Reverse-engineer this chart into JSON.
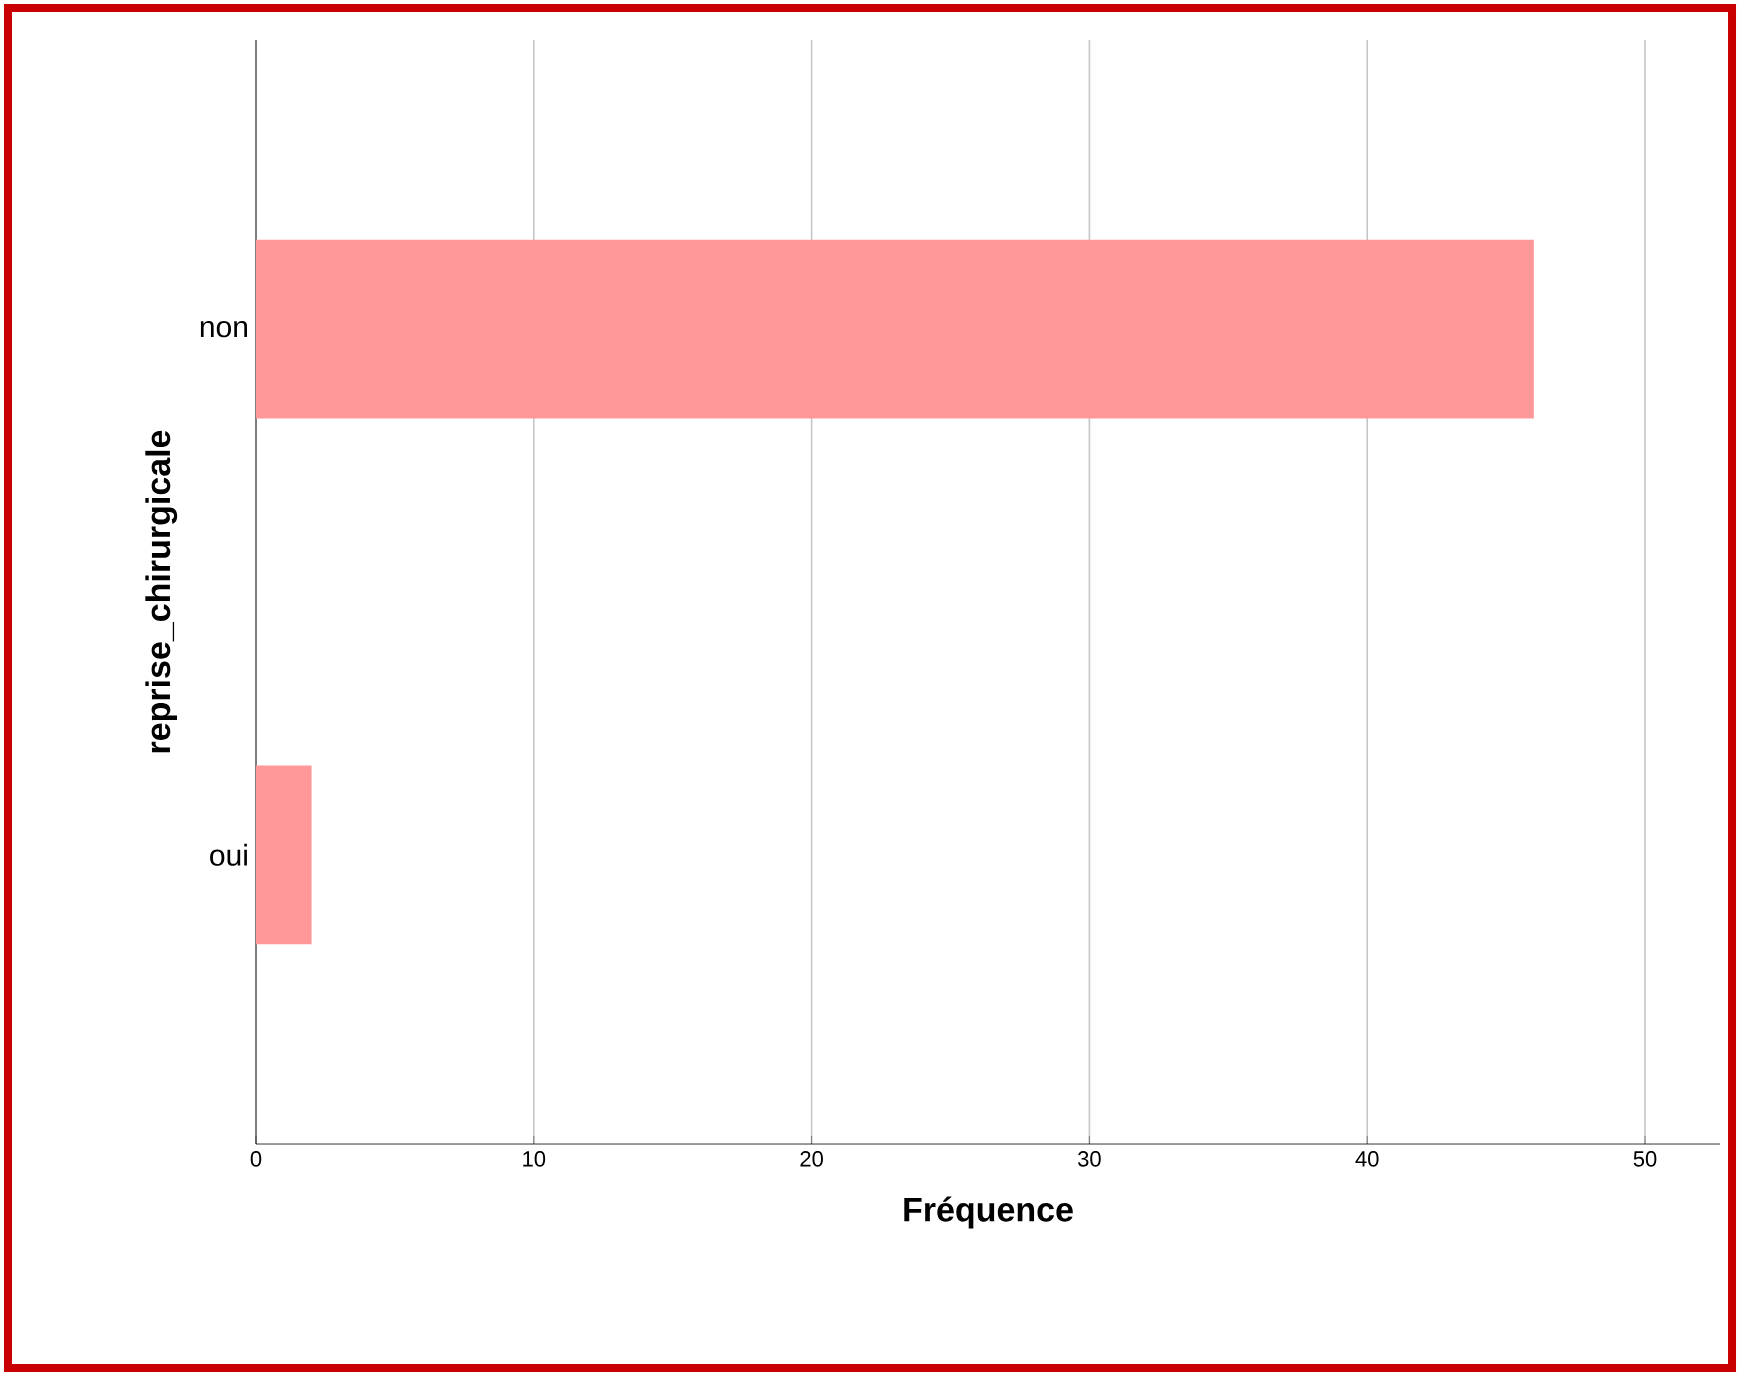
{
  "chart_data": {
    "type": "bar",
    "orientation": "horizontal",
    "xlabel": "Fréquence",
    "ylabel": "reprise_chirurgicale",
    "categories": [
      "non",
      "oui"
    ],
    "values": [
      46,
      2
    ],
    "color": "#ff9999",
    "xlim": [
      0,
      52.7
    ],
    "xticks": [
      0,
      10,
      20,
      30,
      40,
      50
    ],
    "grid": "x"
  }
}
